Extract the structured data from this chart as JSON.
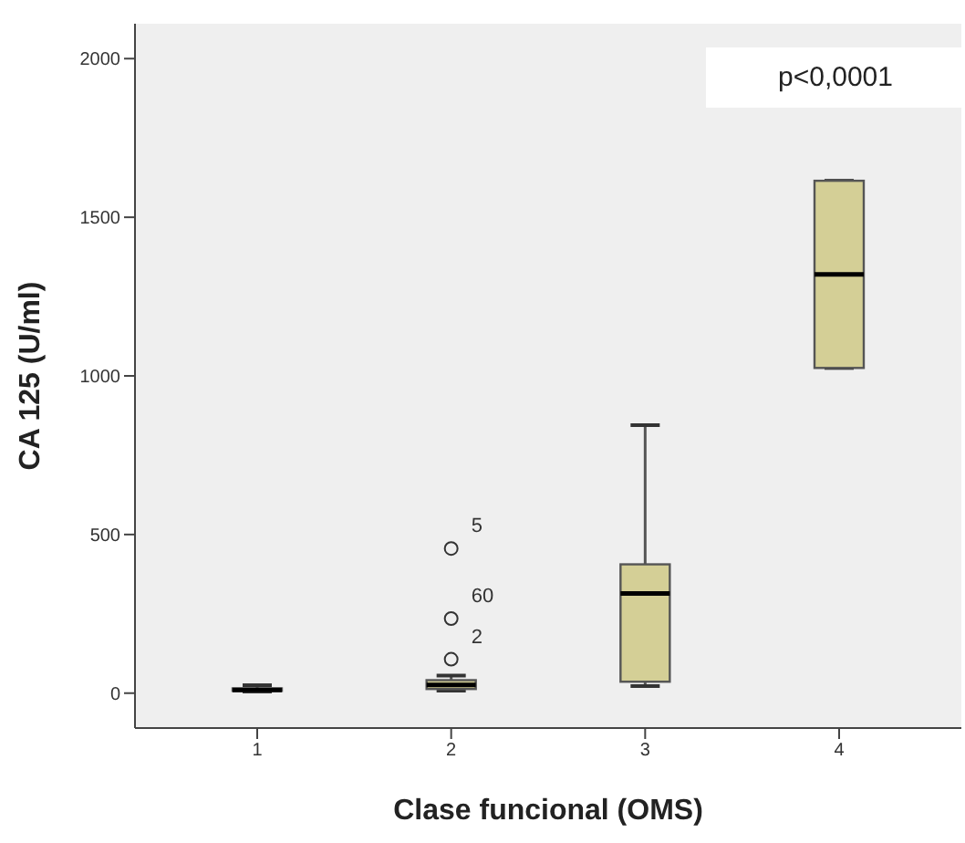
{
  "chart_data": {
    "type": "box",
    "xlabel": "Clase funcional (OMS)",
    "ylabel": "CA 125 (U/ml)",
    "categories": [
      "1",
      "2",
      "3",
      "4"
    ],
    "color": "#d4cf96",
    "boxes": [
      {
        "low": 5,
        "q1": 7,
        "median": 10,
        "q3": 15,
        "high": 25
      },
      {
        "low": 8,
        "q1": 13,
        "median": 26,
        "q3": 41,
        "high": 55
      },
      {
        "low": 22,
        "q1": 36,
        "median": 314,
        "q3": 406,
        "high": 845
      },
      {
        "low": 1025,
        "q1": 1025,
        "median": 1320,
        "q3": 1615,
        "high": 1615
      }
    ],
    "series": [
      {
        "type": "scatter",
        "x": [
          "2",
          "2",
          "2"
        ],
        "values": [
          107,
          235,
          456
        ],
        "color": "#333333"
      }
    ],
    "ylim": [
      -110,
      2110
    ],
    "yticks": [
      0,
      500,
      1000,
      1500,
      2000
    ],
    "grid": false,
    "annotations": [
      "p<0,0001",
      {
        "text": "5",
        "x": "2",
        "y": 456
      },
      {
        "text": "60",
        "x": "2",
        "y": 235
      },
      {
        "text": "2",
        "x": "2",
        "y": 107
      }
    ]
  }
}
